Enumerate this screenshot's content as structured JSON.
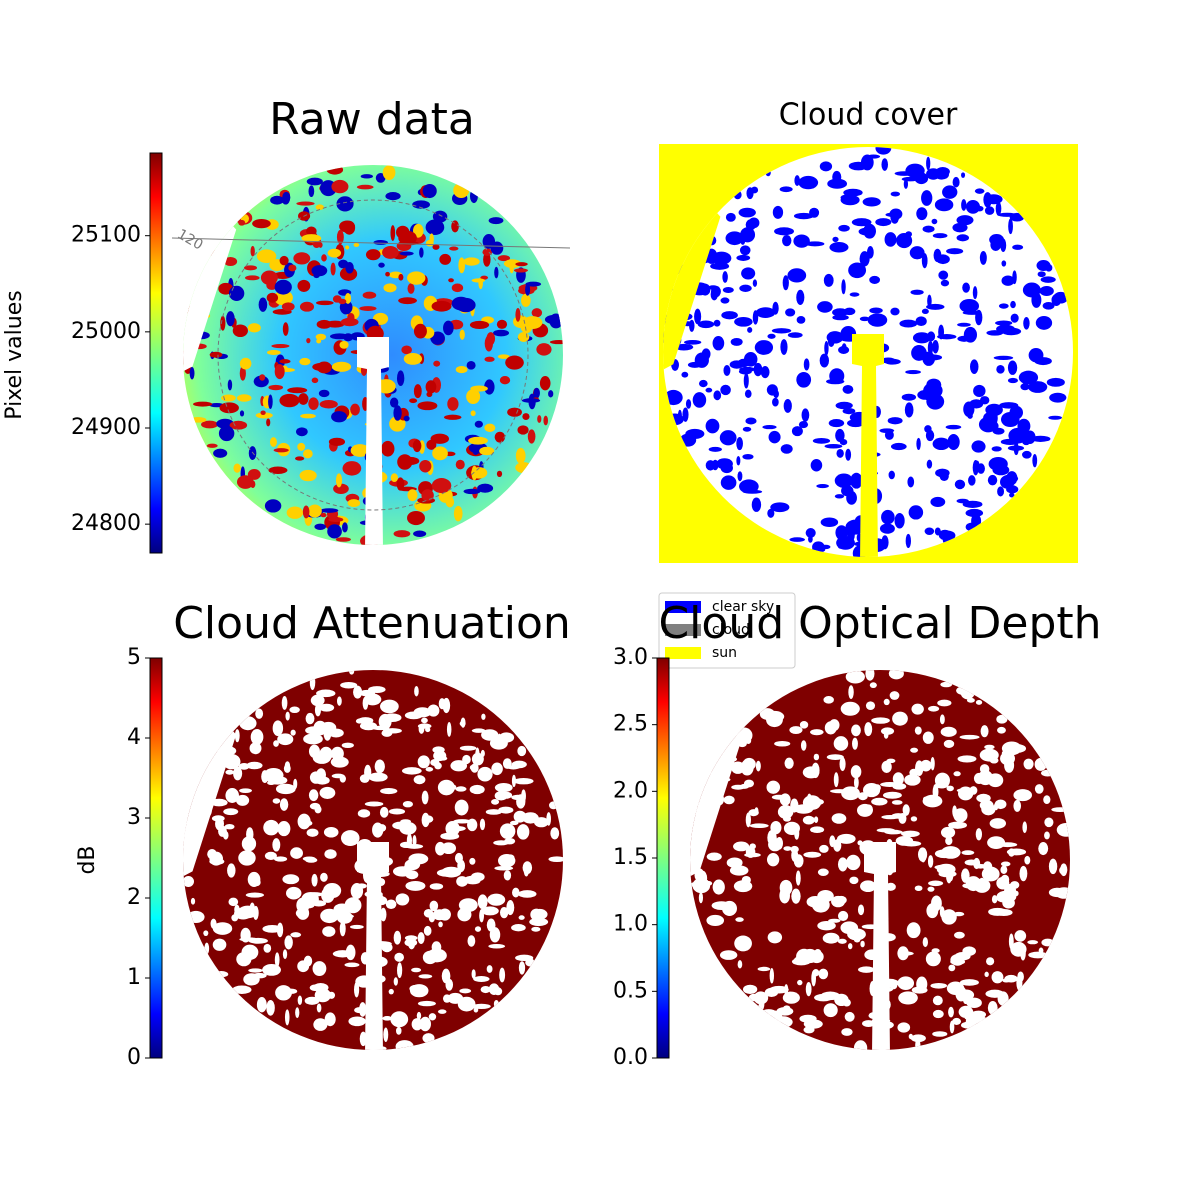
{
  "chart_data": [
    {
      "type": "image",
      "title": "Raw data",
      "colorbar_label": "Pixel values",
      "clim": [
        24770,
        25186
      ],
      "cticks": [
        24800,
        24900,
        25000,
        25100
      ],
      "colormap": "jet",
      "annotations": [
        "120"
      ]
    },
    {
      "type": "classmap",
      "title": "Cloud cover",
      "legend": {
        "labels": [
          "clear sky",
          "cloud",
          "sun"
        ],
        "colors": [
          "#0000ff",
          "#808080",
          "#ffff00"
        ]
      }
    },
    {
      "type": "image",
      "title": "Cloud Attenuation",
      "colorbar_label": "dB",
      "clim": [
        0,
        5
      ],
      "cticks": [
        0,
        1,
        2,
        3,
        4,
        5
      ],
      "colormap": "jet"
    },
    {
      "type": "image",
      "title": "Cloud Optical Depth",
      "clim": [
        0,
        3
      ],
      "cticks": [
        {
          "value": 0,
          "label": "0.0"
        },
        0.5,
        {
          "value": 1,
          "label": "1.0"
        },
        1.5,
        {
          "value": 2,
          "label": "2.0"
        },
        2.5,
        {
          "value": 3,
          "label": "3.0"
        }
      ],
      "colormap": "jet"
    }
  ]
}
